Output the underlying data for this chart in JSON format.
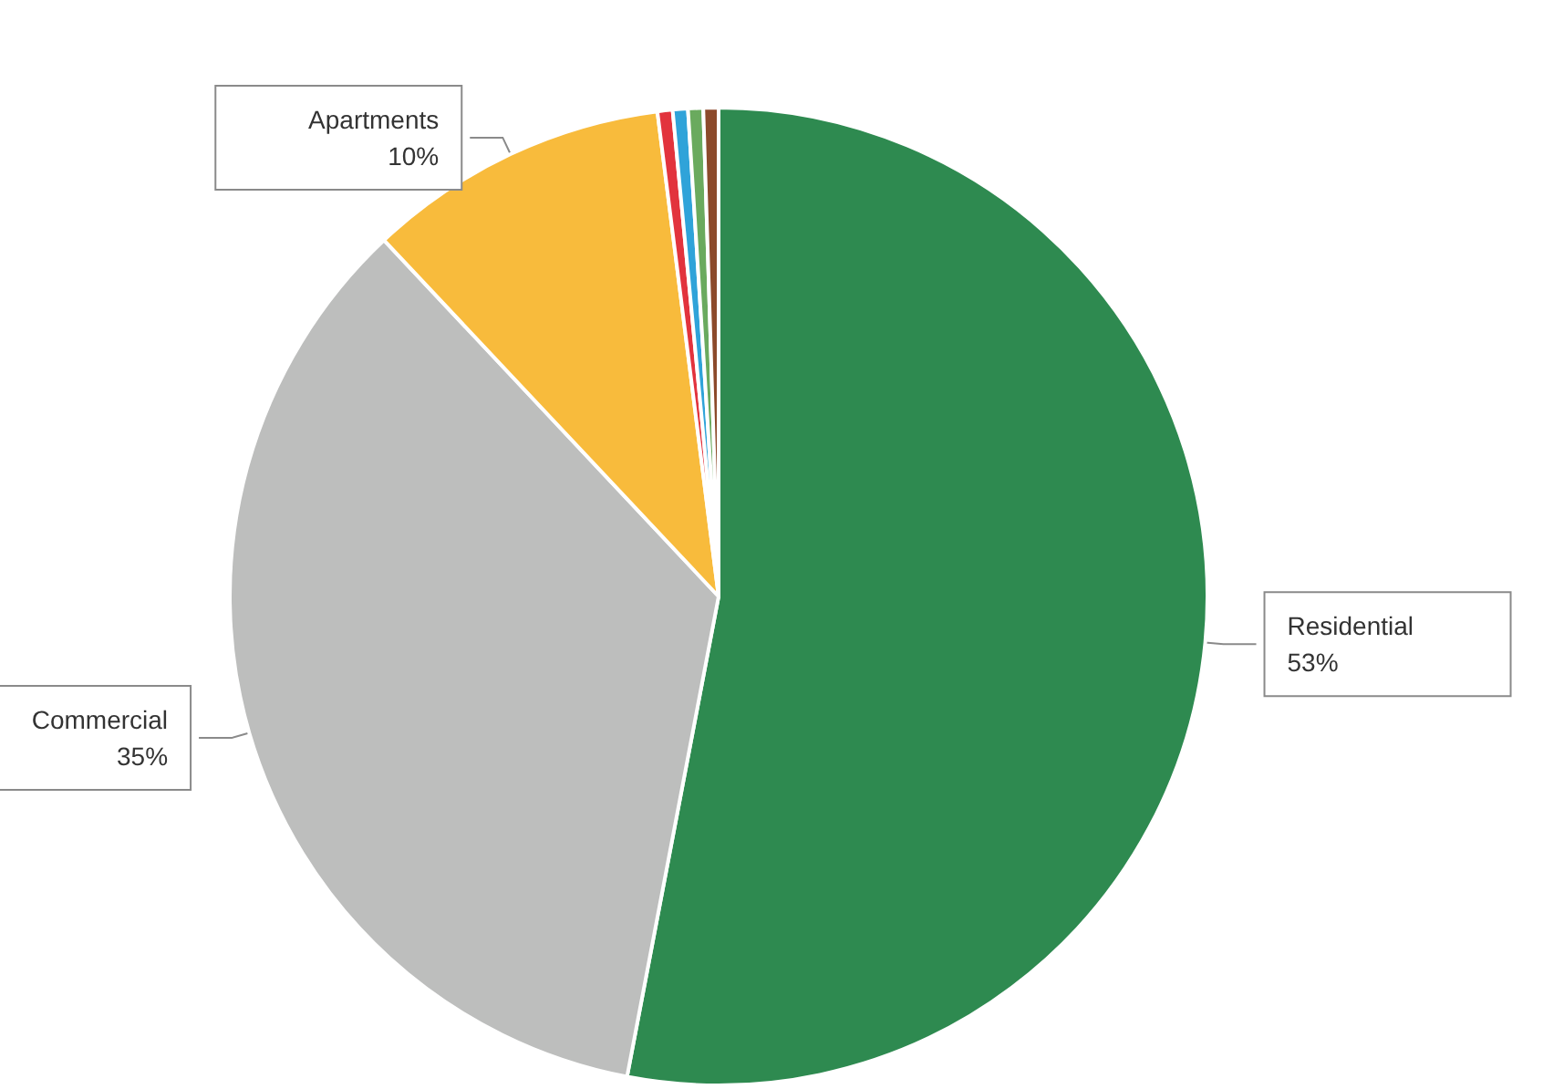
{
  "chart_data": {
    "type": "pie",
    "categories": [
      "Residential",
      "Commercial",
      "Apartments",
      null,
      null,
      null,
      null
    ],
    "values": [
      53,
      35,
      10,
      0.5,
      0.5,
      0.5,
      0.5
    ],
    "colors": [
      "#2e8a50",
      "#bdbebd",
      "#f8bb3c",
      "#e2333d",
      "#2fa3d9",
      "#6aaa5e",
      "#8c4a2b"
    ],
    "value_labels": [
      "53%",
      "35%",
      "10%",
      null,
      null,
      null,
      null
    ]
  }
}
